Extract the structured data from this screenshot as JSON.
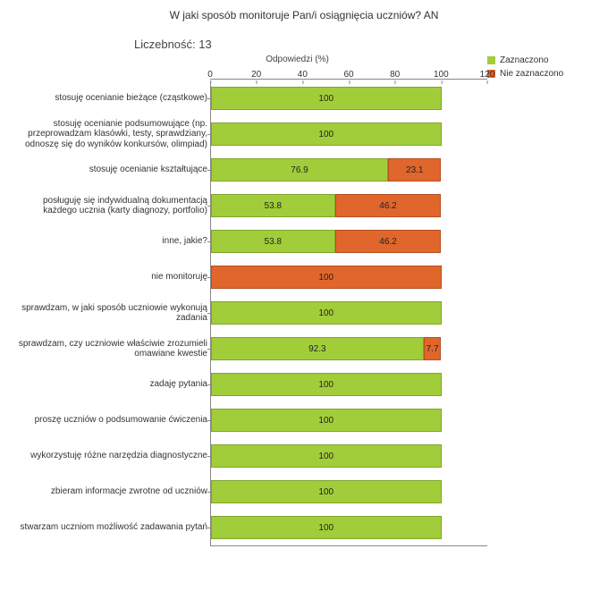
{
  "title": "W jaki sposób monitoruje Pan/i osiągnięcia uczniów?  AN",
  "subtitle": "Liczebność: 13",
  "axis_title": "Odpowiedzi (%)",
  "legend": [
    {
      "label": "Zaznaczono",
      "color": "#a2cd3a"
    },
    {
      "label": "Nie zaznaczono",
      "color": "#e1662b"
    }
  ],
  "axis": {
    "min": 0,
    "max": 120,
    "step": 20
  },
  "colors": {
    "zazn": "#a2cd3a",
    "niez": "#e1662b"
  },
  "rows": [
    {
      "label": "stosuję ocenianie bieżące (cząstkowe)",
      "segments": [
        {
          "v": 100,
          "c": "#a2cd3a"
        }
      ]
    },
    {
      "label": "stosuję ocenianie podsumowujące (np. przeprowadzam klasówki, testy, sprawdziany, odnoszę się do wyników konkursów, olimpiad)",
      "segments": [
        {
          "v": 100,
          "c": "#a2cd3a"
        }
      ]
    },
    {
      "label": "stosuję ocenianie kształtujące",
      "segments": [
        {
          "v": 76.9,
          "c": "#a2cd3a"
        },
        {
          "v": 23.1,
          "c": "#e1662b"
        }
      ]
    },
    {
      "label": "posługuję się indywidualną dokumentacją każdego ucznia (karty diagnozy, portfolio)",
      "segments": [
        {
          "v": 53.8,
          "c": "#a2cd3a"
        },
        {
          "v": 46.2,
          "c": "#e1662b"
        }
      ]
    },
    {
      "label": "inne, jakie?",
      "segments": [
        {
          "v": 53.8,
          "c": "#a2cd3a"
        },
        {
          "v": 46.2,
          "c": "#e1662b"
        }
      ]
    },
    {
      "label": "nie monitoruję",
      "segments": [
        {
          "v": 100,
          "c": "#e1662b"
        }
      ]
    },
    {
      "label": "sprawdzam, w jaki sposób uczniowie wykonują zadania",
      "segments": [
        {
          "v": 100,
          "c": "#a2cd3a"
        }
      ]
    },
    {
      "label": "sprawdzam, czy uczniowie właściwie zrozumieli omawiane kwestie",
      "segments": [
        {
          "v": 92.3,
          "c": "#a2cd3a"
        },
        {
          "v": 7.7,
          "c": "#e1662b"
        }
      ]
    },
    {
      "label": "zadaję pytania",
      "segments": [
        {
          "v": 100,
          "c": "#a2cd3a"
        }
      ]
    },
    {
      "label": "proszę uczniów o podsumowanie ćwiczenia",
      "segments": [
        {
          "v": 100,
          "c": "#a2cd3a"
        }
      ]
    },
    {
      "label": "wykorzystuję różne narzędzia diagnostyczne",
      "segments": [
        {
          "v": 100,
          "c": "#a2cd3a"
        }
      ]
    },
    {
      "label": "zbieram informacje zwrotne od uczniów",
      "segments": [
        {
          "v": 100,
          "c": "#a2cd3a"
        }
      ]
    },
    {
      "label": "stwarzam uczniom możliwość zadawania pytań",
      "segments": [
        {
          "v": 100,
          "c": "#a2cd3a"
        }
      ]
    }
  ]
}
